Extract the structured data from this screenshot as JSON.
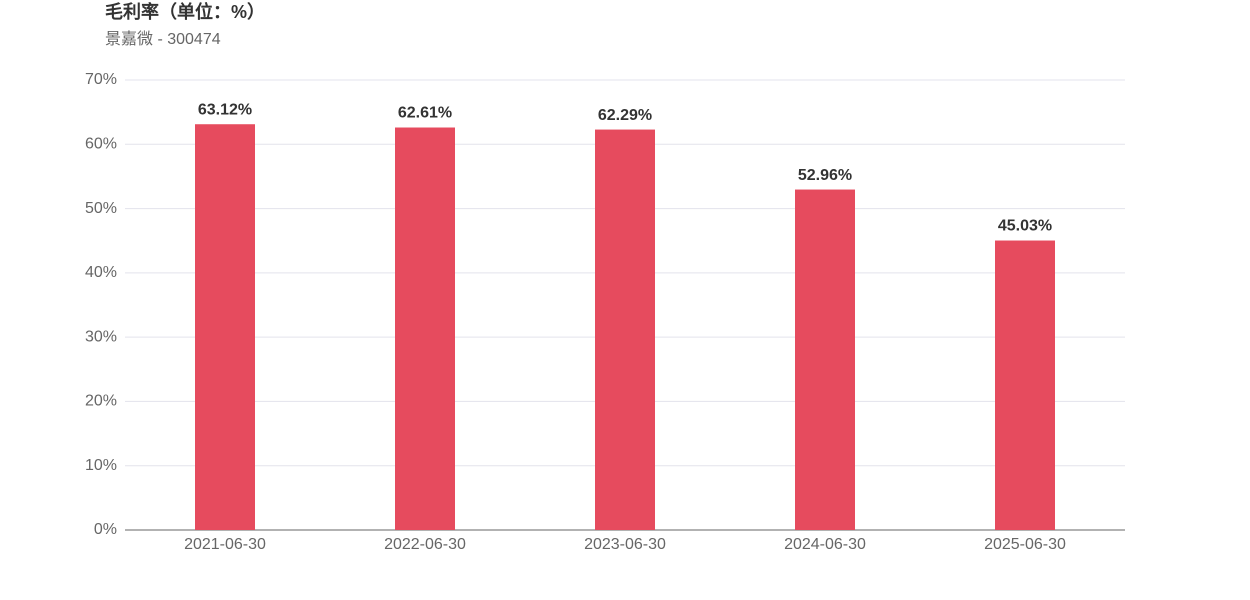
{
  "chart_data": {
    "type": "bar",
    "title": "毛利率（单位：%）",
    "subtitle": "景嘉微 - 300474",
    "categories": [
      "2021-06-30",
      "2022-06-30",
      "2023-06-30",
      "2024-06-30",
      "2025-06-30"
    ],
    "values": [
      63.12,
      62.61,
      62.29,
      52.96,
      45.03
    ],
    "value_labels": [
      "63.12%",
      "62.61%",
      "62.29%",
      "52.96%",
      "45.03%"
    ],
    "color": "#e64b5e",
    "ylim": [
      0,
      70
    ],
    "yticks": [
      {
        "value": 0,
        "label": "0%"
      },
      {
        "value": 10,
        "label": "10%"
      },
      {
        "value": 20,
        "label": "20%"
      },
      {
        "value": 30,
        "label": "30%"
      },
      {
        "value": 40,
        "label": "40%"
      },
      {
        "value": 50,
        "label": "50%"
      },
      {
        "value": 60,
        "label": "60%"
      },
      {
        "value": 70,
        "label": "70%"
      }
    ],
    "grid": true
  }
}
